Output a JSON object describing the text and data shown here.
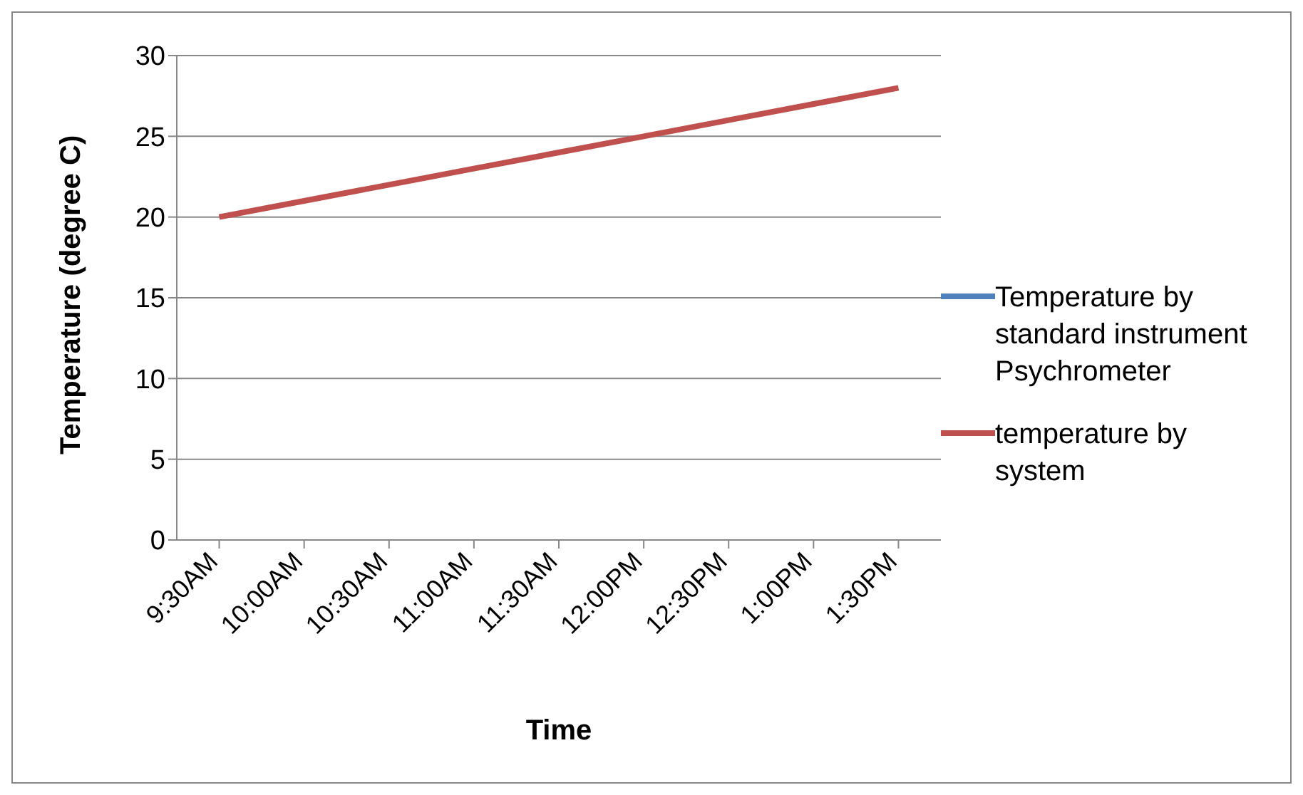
{
  "chart_data": {
    "type": "line",
    "xlabel": "Time",
    "ylabel": "Temperature (degree C)",
    "categories": [
      "9:30AM",
      "10:00AM",
      "10:30AM",
      "11:00AM",
      "11:30AM",
      "12:00PM",
      "12:30PM",
      "1:00PM",
      "1:30PM"
    ],
    "series": [
      {
        "name": "Temperature by standard instrument Psychrometer",
        "color": "#4f81bd",
        "values": [
          null,
          null,
          null,
          null,
          null,
          null,
          null,
          null,
          null
        ]
      },
      {
        "name": "temperature by system",
        "color": "#c0504d",
        "values": [
          20,
          21,
          22,
          23,
          24,
          25,
          26,
          27,
          28
        ]
      }
    ],
    "ylim": [
      0,
      30
    ],
    "yticks": [
      0,
      5,
      10,
      15,
      20,
      25,
      30
    ],
    "grid": "y",
    "legend": "right",
    "marker": "none",
    "line_style": "solid"
  }
}
